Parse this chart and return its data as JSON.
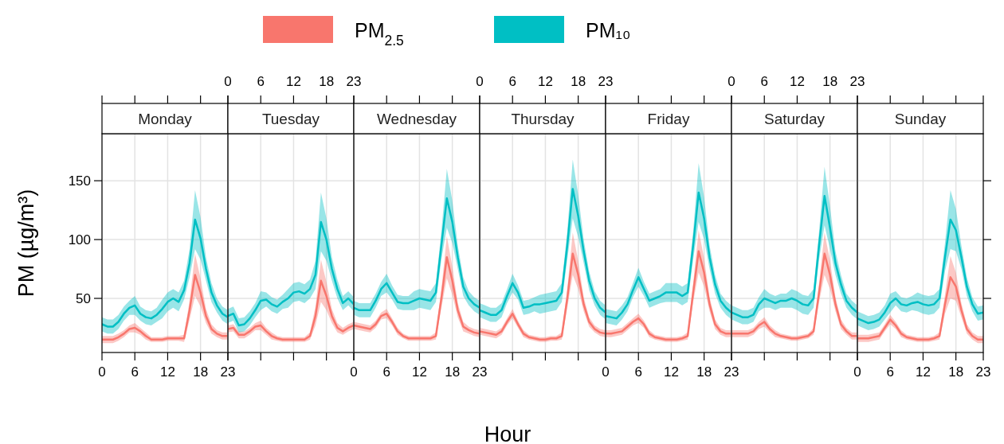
{
  "chart_data": [
    {
      "type": "line",
      "title": "Monday",
      "ylabel": "PM (µg/m³)",
      "legend": "top",
      "grid": true,
      "x": [
        0,
        1,
        2,
        3,
        4,
        5,
        6,
        7,
        8,
        9,
        10,
        11,
        12,
        13,
        14,
        15,
        16,
        17,
        18,
        19,
        20,
        21,
        22,
        23
      ],
      "xlim": [
        0,
        23
      ],
      "xticks": [
        0,
        6,
        12,
        18,
        23
      ],
      "ylim": [
        4,
        190
      ],
      "yticks": [
        50,
        100,
        150
      ],
      "series": [
        {
          "name": "PM$_{2.5}$",
          "color": "#f8766d",
          "values": [
            15,
            15,
            15,
            17,
            20,
            24,
            25,
            22,
            18,
            15,
            15,
            15,
            16,
            16,
            16,
            16,
            40,
            70,
            55,
            35,
            24,
            20,
            18,
            18
          ],
          "lower": [
            12,
            12,
            12,
            14,
            17,
            21,
            21,
            19,
            15,
            13,
            13,
            13,
            14,
            14,
            14,
            13,
            32,
            52,
            43,
            29,
            20,
            17,
            15,
            15
          ],
          "upper": [
            18,
            18,
            18,
            20,
            23,
            27,
            29,
            25,
            21,
            17,
            17,
            17,
            18,
            18,
            18,
            19,
            48,
            88,
            67,
            41,
            28,
            23,
            21,
            21
          ]
        },
        {
          "name": "PM₁₀",
          "color": "#00bfc4",
          "values": [
            28,
            26,
            26,
            30,
            37,
            42,
            44,
            37,
            34,
            33,
            36,
            41,
            47,
            50,
            47,
            57,
            80,
            117,
            101,
            75,
            55,
            44,
            37,
            34
          ],
          "lower": [
            22,
            20,
            20,
            24,
            31,
            36,
            36,
            31,
            28,
            27,
            30,
            33,
            39,
            42,
            39,
            49,
            68,
            92,
            83,
            65,
            47,
            38,
            31,
            28
          ],
          "upper": [
            34,
            32,
            32,
            36,
            43,
            48,
            52,
            43,
            40,
            39,
            42,
            49,
            55,
            58,
            55,
            65,
            92,
            142,
            119,
            85,
            63,
            50,
            43,
            40
          ]
        }
      ]
    },
    {
      "type": "line",
      "title": "Tuesday",
      "grid": true,
      "tick_labels": "x",
      "x": [
        0,
        1,
        2,
        3,
        4,
        5,
        6,
        7,
        8,
        9,
        10,
        11,
        12,
        13,
        14,
        15,
        16,
        17,
        18,
        19,
        20,
        21,
        22,
        23
      ],
      "xlim": [
        0,
        23
      ],
      "xticks": [
        0,
        6,
        12,
        18,
        23
      ],
      "ylim": [
        4,
        190
      ],
      "yticks": [
        50,
        100,
        150
      ],
      "series": [
        {
          "color": "#f8766d",
          "values": [
            24,
            25,
            19,
            19,
            22,
            26,
            27,
            22,
            18,
            16,
            15,
            15,
            15,
            15,
            15,
            18,
            35,
            65,
            52,
            35,
            25,
            22,
            25,
            27
          ],
          "lower": [
            21,
            22,
            16,
            16,
            19,
            23,
            23,
            19,
            15,
            14,
            13,
            13,
            13,
            13,
            13,
            15,
            27,
            47,
            40,
            29,
            21,
            19,
            22,
            24
          ],
          "upper": [
            27,
            28,
            22,
            22,
            25,
            29,
            31,
            25,
            21,
            18,
            17,
            17,
            17,
            17,
            17,
            21,
            43,
            83,
            64,
            41,
            29,
            25,
            28,
            30
          ]
        },
        {
          "color": "#00bfc4",
          "values": [
            35,
            37,
            27,
            28,
            33,
            40,
            48,
            49,
            45,
            43,
            47,
            50,
            55,
            56,
            54,
            58,
            70,
            115,
            100,
            75,
            58,
            46,
            50,
            45
          ],
          "lower": [
            29,
            31,
            21,
            22,
            27,
            34,
            40,
            43,
            39,
            37,
            41,
            42,
            47,
            48,
            46,
            50,
            58,
            90,
            82,
            65,
            50,
            40,
            44,
            39
          ],
          "upper": [
            41,
            43,
            33,
            34,
            39,
            46,
            56,
            55,
            51,
            49,
            53,
            58,
            63,
            64,
            62,
            66,
            82,
            140,
            118,
            85,
            66,
            52,
            56,
            51
          ]
        }
      ]
    },
    {
      "type": "line",
      "title": "Wednesday",
      "grid": true,
      "tick_labels": "x",
      "x": [
        0,
        1,
        2,
        3,
        4,
        5,
        6,
        7,
        8,
        9,
        10,
        11,
        12,
        13,
        14,
        15,
        16,
        17,
        18,
        19,
        20,
        21,
        22,
        23
      ],
      "xlim": [
        0,
        23
      ],
      "xticks": [
        0,
        6,
        12,
        18,
        23
      ],
      "ylim": [
        4,
        190
      ],
      "yticks": [
        50,
        100,
        150
      ],
      "series": [
        {
          "color": "#f8766d",
          "values": [
            27,
            26,
            25,
            24,
            28,
            35,
            37,
            30,
            22,
            18,
            16,
            16,
            16,
            16,
            16,
            18,
            50,
            85,
            65,
            40,
            26,
            23,
            21,
            20
          ],
          "lower": [
            24,
            23,
            22,
            21,
            25,
            32,
            33,
            27,
            19,
            16,
            14,
            14,
            14,
            14,
            14,
            15,
            42,
            67,
            53,
            34,
            22,
            20,
            18,
            17
          ],
          "upper": [
            30,
            29,
            28,
            27,
            31,
            38,
            41,
            33,
            25,
            20,
            18,
            18,
            18,
            18,
            18,
            21,
            58,
            103,
            77,
            46,
            30,
            26,
            24,
            23
          ]
        },
        {
          "color": "#00bfc4",
          "values": [
            42,
            40,
            40,
            40,
            48,
            58,
            63,
            55,
            47,
            46,
            46,
            48,
            50,
            49,
            48,
            55,
            95,
            135,
            115,
            85,
            60,
            50,
            45,
            42
          ],
          "lower": [
            36,
            34,
            34,
            34,
            42,
            52,
            55,
            49,
            41,
            40,
            40,
            40,
            42,
            41,
            40,
            47,
            83,
            110,
            97,
            75,
            52,
            44,
            39,
            36
          ],
          "upper": [
            48,
            46,
            46,
            46,
            54,
            64,
            71,
            61,
            53,
            52,
            52,
            56,
            58,
            57,
            56,
            63,
            107,
            160,
            133,
            95,
            68,
            56,
            51,
            48
          ]
        }
      ]
    },
    {
      "type": "line",
      "title": "Thursday",
      "xlabel": "Hour",
      "grid": true,
      "tick_labels": "x",
      "x": [
        0,
        1,
        2,
        3,
        4,
        5,
        6,
        7,
        8,
        9,
        10,
        11,
        12,
        13,
        14,
        15,
        16,
        17,
        18,
        19,
        20,
        21,
        22,
        23
      ],
      "xlim": [
        0,
        23
      ],
      "xticks": [
        0,
        6,
        12,
        18,
        23
      ],
      "ylim": [
        4,
        190
      ],
      "yticks": [
        50,
        100,
        150
      ],
      "series": [
        {
          "color": "#f8766d",
          "values": [
            22,
            21,
            20,
            19,
            22,
            30,
            37,
            28,
            20,
            17,
            16,
            15,
            15,
            16,
            16,
            18,
            50,
            88,
            70,
            45,
            30,
            24,
            21,
            20
          ],
          "lower": [
            19,
            18,
            17,
            16,
            19,
            27,
            33,
            25,
            17,
            15,
            14,
            13,
            13,
            14,
            14,
            15,
            42,
            70,
            58,
            39,
            26,
            21,
            18,
            17
          ],
          "upper": [
            25,
            24,
            23,
            22,
            25,
            33,
            41,
            31,
            23,
            19,
            18,
            17,
            17,
            18,
            18,
            21,
            58,
            106,
            82,
            51,
            34,
            27,
            24,
            23
          ]
        },
        {
          "color": "#00bfc4",
          "values": [
            40,
            38,
            36,
            36,
            40,
            52,
            63,
            55,
            42,
            43,
            45,
            45,
            46,
            47,
            48,
            55,
            95,
            143,
            120,
            90,
            65,
            50,
            42,
            38
          ],
          "lower": [
            34,
            32,
            30,
            30,
            34,
            46,
            55,
            49,
            36,
            37,
            39,
            37,
            38,
            39,
            40,
            47,
            83,
            118,
            102,
            80,
            57,
            44,
            36,
            32
          ],
          "upper": [
            46,
            44,
            42,
            42,
            46,
            58,
            71,
            61,
            48,
            49,
            51,
            53,
            54,
            55,
            56,
            63,
            107,
            168,
            138,
            100,
            73,
            56,
            48,
            44
          ]
        }
      ]
    },
    {
      "type": "line",
      "title": "Friday",
      "grid": true,
      "tick_labels": "x",
      "x": [
        0,
        1,
        2,
        3,
        4,
        5,
        6,
        7,
        8,
        9,
        10,
        11,
        12,
        13,
        14,
        15,
        16,
        17,
        18,
        19,
        20,
        21,
        22,
        23
      ],
      "xlim": [
        0,
        23
      ],
      "xticks": [
        0,
        6,
        12,
        18,
        23
      ],
      "ylim": [
        4,
        190
      ],
      "yticks": [
        50,
        100,
        150
      ],
      "series": [
        {
          "color": "#f8766d",
          "values": [
            20,
            20,
            21,
            22,
            26,
            30,
            33,
            28,
            20,
            17,
            16,
            15,
            15,
            15,
            16,
            18,
            55,
            90,
            72,
            45,
            28,
            22,
            20,
            20
          ],
          "lower": [
            17,
            17,
            18,
            19,
            23,
            27,
            29,
            25,
            17,
            15,
            14,
            13,
            13,
            13,
            14,
            15,
            47,
            72,
            60,
            39,
            24,
            19,
            17,
            17
          ],
          "upper": [
            23,
            23,
            24,
            25,
            29,
            33,
            37,
            31,
            23,
            19,
            18,
            17,
            17,
            17,
            18,
            21,
            63,
            108,
            84,
            51,
            32,
            25,
            23,
            23
          ]
        },
        {
          "color": "#00bfc4",
          "values": [
            35,
            34,
            33,
            38,
            45,
            57,
            68,
            58,
            48,
            50,
            52,
            55,
            55,
            55,
            52,
            55,
            95,
            140,
            118,
            85,
            62,
            48,
            42,
            38
          ],
          "lower": [
            29,
            28,
            27,
            32,
            39,
            51,
            60,
            52,
            42,
            44,
            46,
            47,
            47,
            47,
            44,
            47,
            83,
            115,
            100,
            75,
            54,
            42,
            36,
            32
          ],
          "upper": [
            41,
            40,
            39,
            44,
            51,
            63,
            76,
            64,
            54,
            56,
            58,
            63,
            63,
            63,
            60,
            63,
            107,
            165,
            136,
            95,
            70,
            54,
            48,
            44
          ]
        }
      ]
    },
    {
      "type": "line",
      "title": "Saturday",
      "grid": true,
      "tick_labels": "x",
      "x": [
        0,
        1,
        2,
        3,
        4,
        5,
        6,
        7,
        8,
        9,
        10,
        11,
        12,
        13,
        14,
        15,
        16,
        17,
        18,
        19,
        20,
        21,
        22,
        23
      ],
      "xlim": [
        0,
        23
      ],
      "xticks": [
        0,
        6,
        12,
        18,
        23
      ],
      "ylim": [
        4,
        190
      ],
      "yticks": [
        50,
        100,
        150
      ],
      "series": [
        {
          "color": "#f8766d",
          "values": [
            20,
            20,
            20,
            20,
            22,
            27,
            30,
            24,
            20,
            18,
            17,
            16,
            16,
            17,
            18,
            22,
            55,
            88,
            70,
            45,
            28,
            22,
            18,
            18
          ],
          "lower": [
            17,
            17,
            17,
            17,
            19,
            24,
            26,
            21,
            17,
            16,
            15,
            14,
            14,
            15,
            16,
            19,
            47,
            70,
            58,
            39,
            24,
            19,
            15,
            15
          ],
          "upper": [
            23,
            23,
            23,
            23,
            25,
            30,
            34,
            27,
            23,
            20,
            19,
            18,
            18,
            19,
            20,
            25,
            63,
            106,
            82,
            51,
            32,
            25,
            21,
            21
          ]
        },
        {
          "color": "#00bfc4",
          "values": [
            38,
            36,
            34,
            34,
            36,
            45,
            50,
            48,
            46,
            48,
            48,
            50,
            48,
            45,
            44,
            50,
            95,
            137,
            110,
            80,
            62,
            48,
            42,
            38
          ],
          "lower": [
            32,
            30,
            28,
            28,
            30,
            39,
            42,
            42,
            40,
            42,
            42,
            42,
            40,
            37,
            36,
            42,
            83,
            112,
            92,
            70,
            54,
            42,
            36,
            32
          ],
          "upper": [
            44,
            42,
            40,
            40,
            42,
            51,
            58,
            54,
            52,
            54,
            54,
            58,
            56,
            53,
            52,
            58,
            107,
            162,
            128,
            90,
            70,
            54,
            48,
            44
          ]
        }
      ]
    },
    {
      "type": "line",
      "title": "Sunday",
      "grid": true,
      "tick_labels": "x",
      "x": [
        0,
        1,
        2,
        3,
        4,
        5,
        6,
        7,
        8,
        9,
        10,
        11,
        12,
        13,
        14,
        15,
        16,
        17,
        18,
        19,
        20,
        21,
        22,
        23
      ],
      "xlim": [
        0,
        23
      ],
      "xticks": [
        0,
        6,
        12,
        18,
        23
      ],
      "ylim": [
        4,
        190
      ],
      "yticks": [
        50,
        100,
        150
      ],
      "series": [
        {
          "color": "#f8766d",
          "values": [
            16,
            16,
            16,
            17,
            18,
            25,
            32,
            27,
            20,
            17,
            16,
            15,
            15,
            15,
            16,
            18,
            45,
            68,
            60,
            40,
            24,
            18,
            15,
            15
          ],
          "lower": [
            13,
            13,
            13,
            14,
            15,
            22,
            28,
            24,
            17,
            15,
            14,
            13,
            13,
            13,
            14,
            15,
            37,
            50,
            48,
            34,
            20,
            15,
            12,
            12
          ],
          "upper": [
            19,
            19,
            19,
            20,
            21,
            28,
            36,
            30,
            23,
            19,
            18,
            17,
            17,
            17,
            18,
            21,
            53,
            86,
            72,
            46,
            28,
            21,
            18,
            18
          ]
        },
        {
          "color": "#00bfc4",
          "values": [
            33,
            31,
            29,
            30,
            32,
            38,
            46,
            50,
            45,
            44,
            46,
            47,
            45,
            44,
            45,
            50,
            85,
            117,
            108,
            85,
            60,
            45,
            37,
            38
          ],
          "lower": [
            27,
            25,
            23,
            24,
            26,
            32,
            38,
            44,
            39,
            38,
            40,
            39,
            37,
            36,
            37,
            42,
            73,
            92,
            90,
            75,
            52,
            39,
            31,
            32
          ],
          "upper": [
            39,
            37,
            35,
            36,
            38,
            44,
            54,
            56,
            51,
            50,
            52,
            55,
            53,
            52,
            53,
            58,
            97,
            142,
            126,
            95,
            68,
            51,
            43,
            44
          ]
        }
      ]
    }
  ]
}
